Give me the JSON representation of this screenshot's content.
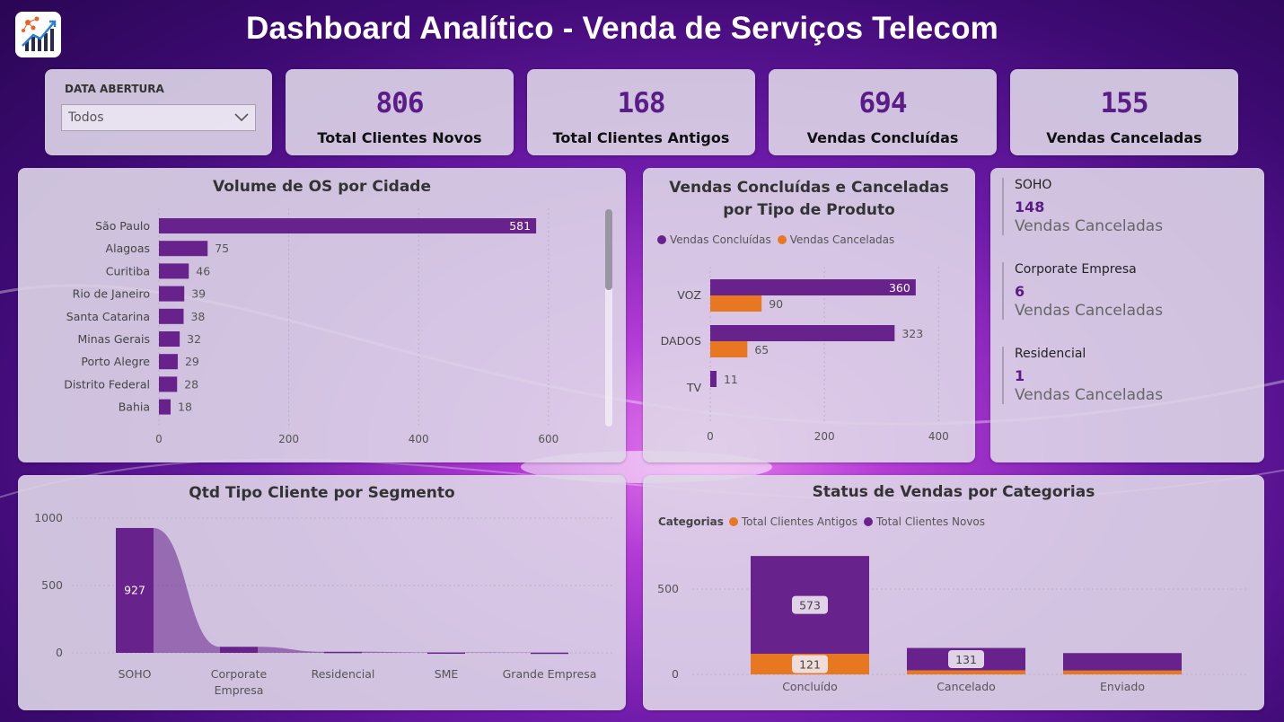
{
  "title": "Dashboard Analítico - Venda de Serviços Telecom",
  "colors": {
    "primary": "#68228c",
    "secondary": "#e87722",
    "accent_text": "#5a1d87"
  },
  "logo_icon": "analytics-logo-icon",
  "filter": {
    "label": "DATA ABERTURA",
    "value": "Todos",
    "icon": "chevron-down-icon"
  },
  "kpis": [
    {
      "value": "806",
      "label": "Total Clientes Novos"
    },
    {
      "value": "168",
      "label": "Total Clientes Antigos"
    },
    {
      "value": "694",
      "label": "Vendas Concluídas"
    },
    {
      "value": "155",
      "label": "Vendas Canceladas"
    }
  ],
  "segment_cards": [
    {
      "name": "SOHO",
      "value": "148",
      "sub": "Vendas Canceladas"
    },
    {
      "name": "Corporate Empresa",
      "value": "6",
      "sub": "Vendas Canceladas"
    },
    {
      "name": "Residencial",
      "value": "1",
      "sub": "Vendas Canceladas"
    }
  ],
  "chart_data": [
    {
      "id": "city",
      "type": "bar",
      "orientation": "horizontal",
      "title": "Volume de OS por Cidade",
      "categories": [
        "São Paulo",
        "Alagoas",
        "Curitiba",
        "Rio de Janeiro",
        "Santa Catarina",
        "Minas Gerais",
        "Porto Alegre",
        "Distrito Federal",
        "Bahia"
      ],
      "values": [
        581,
        75,
        46,
        39,
        38,
        32,
        29,
        28,
        18
      ],
      "xlim": [
        0,
        650
      ],
      "xticks": [
        0,
        200,
        400,
        600
      ],
      "grid": true
    },
    {
      "id": "product",
      "type": "bar",
      "orientation": "horizontal",
      "title": "Vendas Concluídas e Canceladas por Tipo de Produto",
      "categories": [
        "VOZ",
        "DADOS",
        "TV"
      ],
      "series": [
        {
          "name": "Vendas Concluídas",
          "color": "#68228c",
          "values": [
            360,
            323,
            11
          ]
        },
        {
          "name": "Vendas Canceladas",
          "color": "#e87722",
          "values": [
            90,
            65,
            null
          ]
        }
      ],
      "xlim": [
        0,
        420
      ],
      "xticks": [
        0,
        200,
        400
      ],
      "legend": "top-left"
    },
    {
      "id": "segment",
      "type": "bar",
      "title": "Qtd Tipo Cliente por Segmento",
      "categories": [
        "SOHO",
        "Corporate Empresa",
        "Residencial",
        "SME",
        "Grande Empresa"
      ],
      "category_lines": [
        [
          "SOHO"
        ],
        [
          "Corporate",
          "Empresa"
        ],
        [
          "Residencial"
        ],
        [
          "SME"
        ],
        [
          "Grande Empresa"
        ]
      ],
      "values": [
        927,
        45,
        8,
        3,
        2
      ],
      "value_labels": [
        "927",
        "",
        "",
        "",
        ""
      ],
      "ylim": [
        0,
        1000
      ],
      "yticks": [
        0,
        500,
        1000
      ],
      "grid": true
    },
    {
      "id": "status",
      "type": "bar",
      "stacked": true,
      "title": "Status de Vendas por Categorias",
      "legend_title": "Categorias",
      "categories": [
        "Concluído",
        "Cancelado",
        "Enviado"
      ],
      "series": [
        {
          "name": "Total Clientes Antigos",
          "color": "#e87722",
          "values": [
            121,
            24,
            23
          ]
        },
        {
          "name": "Total Clientes Novos",
          "color": "#68228c",
          "values": [
            573,
            131,
            102
          ]
        }
      ],
      "value_labels": {
        "Total Clientes Antigos": [
          "121",
          "",
          ""
        ],
        "Total Clientes Novos": [
          "573",
          "131",
          ""
        ]
      },
      "ylim": [
        0,
        700
      ],
      "yticks": [
        0,
        500
      ],
      "legend": "top-left"
    }
  ]
}
